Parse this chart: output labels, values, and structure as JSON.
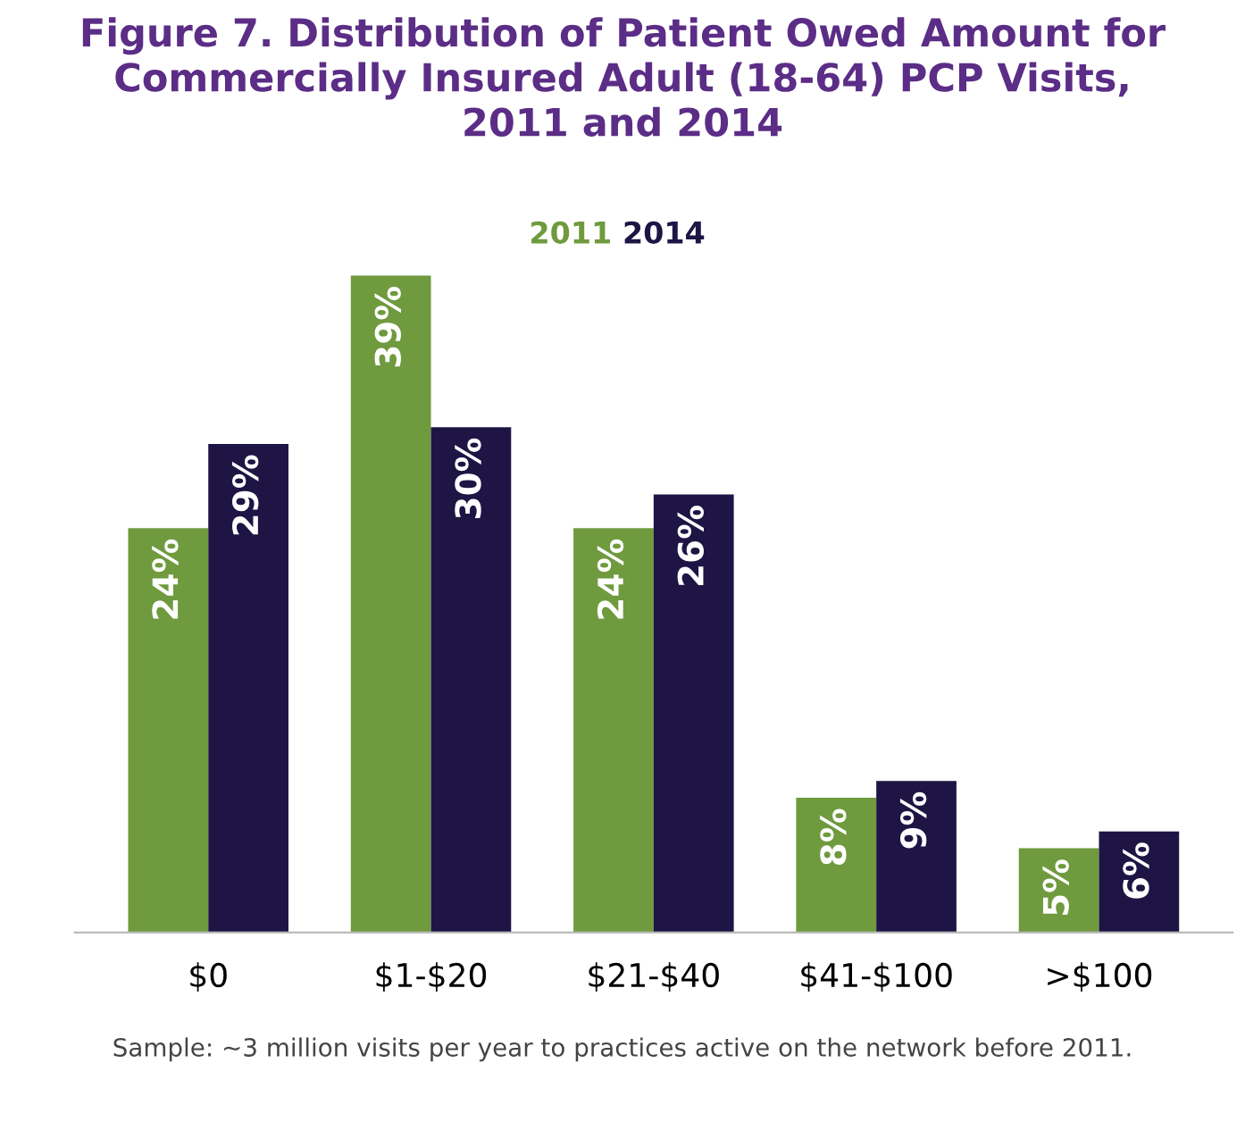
{
  "chart_data": {
    "type": "bar",
    "title": "Figure 7. Distribution of Patient Owed Amount for\nCommercially Insured Adult (18-64) PCP Visits,\n2011 and 2014",
    "categories": [
      "$0",
      "$1-$20",
      "$21-$40",
      "$41-$100",
      ">$100"
    ],
    "series": [
      {
        "name": "2011",
        "color": "#6f9a3e",
        "values": [
          24,
          39,
          24,
          8,
          5
        ],
        "value_labels": [
          "24%",
          "39%",
          "24%",
          "8%",
          "5%"
        ]
      },
      {
        "name": "2014",
        "color": "#1e1545",
        "values": [
          29,
          30,
          26,
          9,
          6
        ],
        "value_labels": [
          "29%",
          "30%",
          "26%",
          "9%",
          "6%"
        ]
      }
    ],
    "legend": "top",
    "grid": false,
    "annotations": [
      "Sample: ~3 million visits per year to practices active on the network before 2011."
    ]
  }
}
